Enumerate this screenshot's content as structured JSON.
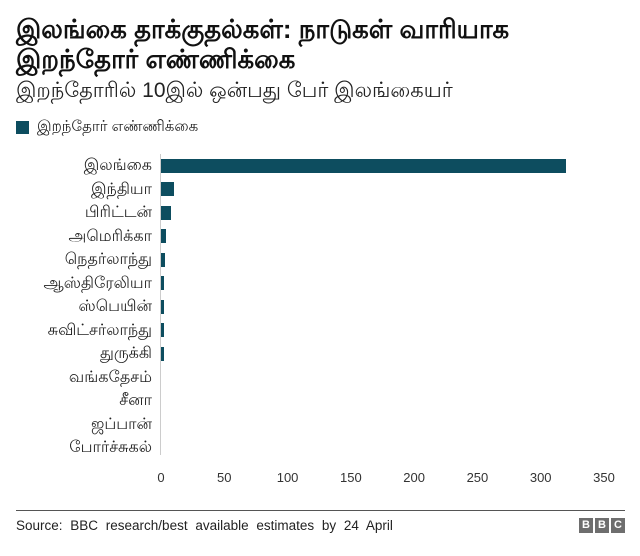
{
  "header": {
    "title": "இலங்கை தாக்குதல்கள்: நாடுகள் வாரியாக இறந்தோர் எண்ணிக்கை",
    "subtitle": "இறந்தோரில் 10இல் ஒன்பது பேர் இலங்கையர்"
  },
  "legend": {
    "label": "இறந்தோர் எண்ணிக்கை",
    "color": "#0d4d5f"
  },
  "footer": {
    "source": "Source: BBC research/best available estimates by 24 April",
    "logo_letters": [
      "B",
      "B",
      "C"
    ]
  },
  "chart_data": {
    "type": "bar",
    "orientation": "horizontal",
    "title": "இலங்கை தாக்குதல்கள்: நாடுகள் வாரியாக இறந்தோர் எண்ணிக்கை",
    "subtitle": "இறந்தோரில் 10இல் ஒன்பது பேர் இலங்கையர்",
    "xlabel": "",
    "ylabel": "",
    "categories": [
      "இலங்கை",
      "இந்தியா",
      "பிரிட்டன்",
      "அமெரிக்கா",
      "நெதர்லாந்து",
      "ஆஸ்திரேலியா",
      "ஸ்பெயின்",
      "சுவிட்சர்லாந்து",
      "துருக்கி",
      "வங்கதேசம்",
      "சீனா",
      "ஜப்பான்",
      "போர்ச்சுகல்"
    ],
    "series": [
      {
        "name": "இறந்தோர் எண்ணிக்கை",
        "color": "#0d4d5f",
        "values": [
          320,
          10,
          8,
          4,
          3,
          2,
          2,
          2,
          2,
          0,
          0,
          0,
          0
        ]
      }
    ],
    "xlim": [
      0,
      350
    ],
    "xticks": [
      0,
      50,
      100,
      150,
      200,
      250,
      300,
      350
    ],
    "grid": false,
    "legend_position": "top-left"
  }
}
